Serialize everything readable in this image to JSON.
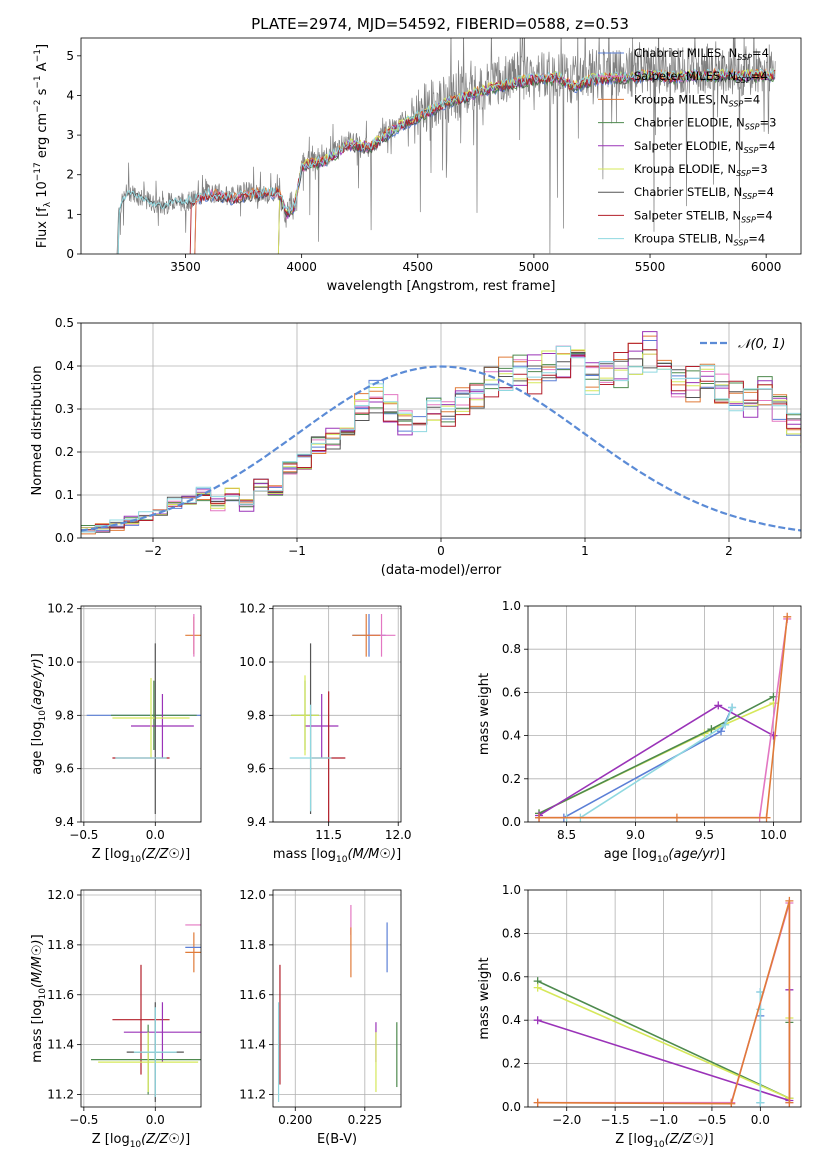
{
  "title": "PLATE=2974, MJD=54592, FIBERID=0588, z=0.53",
  "colors": {
    "Chabrier MILES": "#5b7fd6",
    "Salpeter MILES": "#e377c2",
    "Kroupa MILES": "#e07b39",
    "Chabrier ELODIE": "#4e8a4e",
    "Salpeter ELODIE": "#9a33b8",
    "Kroupa ELODIE": "#d6e85a",
    "Chabrier STELIB": "#555555",
    "Salpeter STELIB": "#b21f2a",
    "Kroupa STELIB": "#8fd8e0"
  },
  "chart_data": [
    {
      "id": "spectrum",
      "type": "line",
      "xlabel": "wavelength [Angstrom, rest frame]",
      "ylabel": "Flux [f_λ 10^-17 erg cm^-2 s^-1 A^-1]",
      "xlim": [
        3050,
        6150
      ],
      "ylim": [
        0,
        5.45
      ],
      "xticks": [
        3500,
        4000,
        4500,
        5000,
        5500,
        6000
      ],
      "yticks": [
        0,
        1,
        2,
        3,
        4,
        5
      ],
      "grid": false,
      "legend_position": "top-right",
      "data_color": "#808080",
      "data_curve": [
        [
          3205,
          0
        ],
        [
          3210,
          1.05
        ],
        [
          3250,
          1.6
        ],
        [
          3300,
          1.45
        ],
        [
          3350,
          1.3
        ],
        [
          3400,
          1.2
        ],
        [
          3450,
          1.35
        ],
        [
          3500,
          1.3
        ],
        [
          3550,
          1.4
        ],
        [
          3600,
          1.55
        ],
        [
          3650,
          1.5
        ],
        [
          3700,
          1.45
        ],
        [
          3750,
          1.6
        ],
        [
          3800,
          1.55
        ],
        [
          3850,
          1.5
        ],
        [
          3900,
          1.6
        ],
        [
          3933,
          0.9
        ],
        [
          3950,
          1.5
        ],
        [
          3968,
          1.1
        ],
        [
          4000,
          2.3
        ],
        [
          4050,
          2.55
        ],
        [
          4100,
          2.4
        ],
        [
          4150,
          2.7
        ],
        [
          4200,
          2.85
        ],
        [
          4250,
          2.8
        ],
        [
          4300,
          2.65
        ],
        [
          4350,
          3.05
        ],
        [
          4400,
          3.25
        ],
        [
          4450,
          3.4
        ],
        [
          4500,
          3.55
        ],
        [
          4550,
          3.75
        ],
        [
          4600,
          3.85
        ],
        [
          4650,
          3.95
        ],
        [
          4700,
          4.1
        ],
        [
          4750,
          4.15
        ],
        [
          4800,
          4.3
        ],
        [
          4850,
          4.35
        ],
        [
          4900,
          4.45
        ],
        [
          4950,
          4.55
        ],
        [
          5000,
          4.5
        ],
        [
          5050,
          4.55
        ],
        [
          5100,
          4.6
        ],
        [
          5150,
          4.4
        ],
        [
          5200,
          4.5
        ],
        [
          5250,
          4.55
        ],
        [
          5300,
          4.55
        ],
        [
          5350,
          4.6
        ],
        [
          5400,
          4.6
        ],
        [
          5450,
          4.55
        ],
        [
          5500,
          4.65
        ],
        [
          5550,
          4.6
        ],
        [
          5600,
          4.6
        ],
        [
          5650,
          4.65
        ],
        [
          5700,
          4.6
        ],
        [
          5750,
          4.7
        ],
        [
          5800,
          4.65
        ],
        [
          5850,
          4.65
        ],
        [
          5900,
          4.6
        ],
        [
          5950,
          4.65
        ],
        [
          6000,
          4.7
        ],
        [
          6040,
          4.7
        ]
      ],
      "model_series_curve": [
        [
          3500,
          1.3
        ],
        [
          3600,
          1.5
        ],
        [
          3700,
          1.4
        ],
        [
          3800,
          1.5
        ],
        [
          3900,
          1.55
        ],
        [
          3935,
          1.0
        ],
        [
          3970,
          1.2
        ],
        [
          4000,
          2.2
        ],
        [
          4100,
          2.35
        ],
        [
          4200,
          2.75
        ],
        [
          4300,
          2.7
        ],
        [
          4400,
          3.15
        ],
        [
          4500,
          3.45
        ],
        [
          4600,
          3.75
        ],
        [
          4700,
          3.95
        ],
        [
          4800,
          4.15
        ],
        [
          4900,
          4.3
        ],
        [
          5000,
          4.4
        ],
        [
          5100,
          4.45
        ],
        [
          5175,
          4.2
        ],
        [
          5250,
          4.4
        ],
        [
          5400,
          4.45
        ],
        [
          5500,
          4.5
        ],
        [
          5600,
          4.45
        ],
        [
          5700,
          4.5
        ],
        [
          5800,
          4.5
        ],
        [
          5900,
          4.48
        ],
        [
          6000,
          4.5
        ],
        [
          6040,
          4.52
        ]
      ],
      "model_starts": {
        "Chabrier MILES": 3540,
        "Salpeter MILES": 3540,
        "Kroupa MILES": 3540,
        "Chabrier ELODIE": 3900,
        "Salpeter ELODIE": 3900,
        "Kroupa ELODIE": 3900,
        "Chabrier STELIB": 3210,
        "Salpeter STELIB": 3520,
        "Kroupa STELIB": 3210
      },
      "legend": [
        "Chabrier MILES, N_SSP=4",
        "Salpeter MILES, N_SSP=4",
        "Kroupa MILES, N_SSP=4",
        "Chabrier ELODIE, N_SSP=3",
        "Salpeter ELODIE, N_SSP=4",
        "Kroupa ELODIE, N_SSP=3",
        "Chabrier STELIB, N_SSP=4",
        "Salpeter STELIB, N_SSP=4",
        "Kroupa STELIB, N_SSP=4"
      ]
    },
    {
      "id": "residuals",
      "type": "histogram",
      "xlabel": "(data-model)/error",
      "ylabel": "Normed distribution",
      "xlim": [
        -2.5,
        2.5
      ],
      "ylim": [
        0,
        0.5
      ],
      "xticks": [
        -2,
        -1,
        0,
        1,
        2
      ],
      "yticks": [
        0.0,
        0.1,
        0.2,
        0.3,
        0.4,
        0.5
      ],
      "grid": true,
      "legend_position": "top-right",
      "gaussian_label": "N(0,1)",
      "gaussian_color": "#5b8bd6",
      "bin_edges_start": -2.5,
      "bin_width": 0.1,
      "base_hist": [
        0.02,
        0.025,
        0.03,
        0.04,
        0.05,
        0.06,
        0.08,
        0.09,
        0.1,
        0.08,
        0.1,
        0.08,
        0.12,
        0.11,
        0.16,
        0.18,
        0.22,
        0.23,
        0.26,
        0.3,
        0.33,
        0.3,
        0.27,
        0.28,
        0.3,
        0.29,
        0.31,
        0.33,
        0.36,
        0.38,
        0.39,
        0.38,
        0.4,
        0.41,
        0.4,
        0.38,
        0.37,
        0.39,
        0.41,
        0.43,
        0.38,
        0.35,
        0.36,
        0.37,
        0.34,
        0.33,
        0.32,
        0.34,
        0.3,
        0.26,
        0.24,
        0.21,
        0.18,
        0.17,
        0.15,
        0.12,
        0.1,
        0.09,
        0.08,
        0.07,
        0.06,
        0.05,
        0.04,
        0.04,
        0.035,
        0.03,
        0.03,
        0.025,
        0.025,
        0.02
      ]
    },
    {
      "id": "age_vs_Z",
      "type": "errorbar",
      "xlabel": "Z [log10(Z/Z☉)]",
      "ylabel": "age  [log10(age/yr)]",
      "xlim": [
        -0.52,
        0.32
      ],
      "ylim": [
        9.4,
        10.21
      ],
      "xticks": [
        -0.5,
        0.0
      ],
      "yticks": [
        9.4,
        9.6,
        9.8,
        10.0,
        10.2
      ],
      "grid": true,
      "points": [
        {
          "model": "Chabrier MILES",
          "x": 0.02,
          "y": 9.8,
          "xerr": 0.5,
          "yerr": 0.0
        },
        {
          "model": "Kroupa MILES",
          "x": 0.27,
          "y": 10.1,
          "xerr": 0.06,
          "yerr": 0.07
        },
        {
          "model": "Salpeter MILES",
          "x": 0.27,
          "y": 10.1,
          "xerr": 0.0,
          "yerr": 0.08
        },
        {
          "model": "Chabrier ELODIE",
          "x": -0.01,
          "y": 9.8,
          "xerr": 0.3,
          "yerr": 0.13
        },
        {
          "model": "Salpeter ELODIE",
          "x": 0.05,
          "y": 9.76,
          "xerr": 0.22,
          "yerr": 0.12
        },
        {
          "model": "Kroupa ELODIE",
          "x": -0.03,
          "y": 9.79,
          "xerr": 0.27,
          "yerr": 0.15
        },
        {
          "model": "Chabrier STELIB",
          "x": 0.0,
          "y": 9.75,
          "xerr": 0.0,
          "yerr": 0.32
        },
        {
          "model": "Salpeter STELIB",
          "x": -0.1,
          "y": 9.64,
          "xerr": 0.2,
          "yerr": 0.0
        },
        {
          "model": "Kroupa STELIB",
          "x": -0.1,
          "y": 9.64,
          "xerr": 0.18,
          "yerr": 0.0
        }
      ]
    },
    {
      "id": "age_vs_mass",
      "type": "errorbar",
      "xlabel": "mass [log10(M/M☉)]",
      "ylabel": "",
      "xlim": [
        11.1,
        12.02
      ],
      "ylim": [
        9.4,
        10.21
      ],
      "xticks": [
        11.0,
        11.5,
        12.0
      ],
      "yticks": [
        9.4,
        9.6,
        9.8,
        10.0,
        10.2
      ],
      "grid": true,
      "points": [
        {
          "model": "Chabrier MILES",
          "x": 11.79,
          "y": 10.1,
          "xerr": 0.12,
          "yerr": 0.08
        },
        {
          "model": "Salpeter MILES",
          "x": 11.88,
          "y": 10.1,
          "xerr": 0.1,
          "yerr": 0.08
        },
        {
          "model": "Kroupa MILES",
          "x": 11.77,
          "y": 10.1,
          "xerr": 0.1,
          "yerr": 0.08
        },
        {
          "model": "Chabrier ELODIE",
          "x": 11.33,
          "y": 9.8,
          "xerr": 0.1,
          "yerr": 0.13
        },
        {
          "model": "Salpeter ELODIE",
          "x": 11.45,
          "y": 9.76,
          "xerr": 0.12,
          "yerr": 0.12
        },
        {
          "model": "Kroupa ELODIE",
          "x": 11.33,
          "y": 9.8,
          "xerr": 0.1,
          "yerr": 0.15
        },
        {
          "model": "Chabrier STELIB",
          "x": 11.37,
          "y": 9.75,
          "xerr": 0.0,
          "yerr": 0.32
        },
        {
          "model": "Salpeter STELIB",
          "x": 11.5,
          "y": 9.64,
          "xerr": 0.12,
          "yerr": 0.25
        },
        {
          "model": "Kroupa STELIB",
          "x": 11.37,
          "y": 9.64,
          "xerr": 0.15,
          "yerr": 0.2
        }
      ]
    },
    {
      "id": "massweight_vs_age",
      "type": "line",
      "xlabel": "age  [log10(age/yr)]",
      "ylabel": "mass weight",
      "xlim": [
        8.22,
        10.2
      ],
      "ylim": [
        0,
        1.0
      ],
      "xticks": [
        8.5,
        9.0,
        9.5,
        10.0
      ],
      "yticks": [
        0.0,
        0.2,
        0.4,
        0.6,
        0.8,
        1.0
      ],
      "grid": true,
      "series": [
        {
          "model": "Kroupa ELODIE",
          "x": [
            8.3,
            9.5,
            10.0
          ],
          "y": [
            0.04,
            0.41,
            0.55
          ]
        },
        {
          "model": "Chabrier ELODIE",
          "x": [
            8.3,
            9.55,
            10.0
          ],
          "y": [
            0.04,
            0.43,
            0.58
          ]
        },
        {
          "model": "Salpeter ELODIE",
          "x": [
            8.3,
            9.6,
            10.0
          ],
          "y": [
            0.03,
            0.54,
            0.4
          ]
        },
        {
          "model": "Chabrier MILES",
          "x": [
            8.48,
            9.62,
            9.7
          ],
          "y": [
            0.02,
            0.42,
            0.53
          ]
        },
        {
          "model": "Kroupa STELIB",
          "x": [
            8.5,
            8.6,
            9.65,
            9.7
          ],
          "y": [
            0.02,
            0.02,
            0.45,
            0.53
          ]
        },
        {
          "model": "Salpeter MILES",
          "x": [
            8.3,
            9.9,
            10.1
          ],
          "y": [
            0.02,
            0.02,
            0.94
          ]
        },
        {
          "model": "Kroupa MILES",
          "x": [
            8.3,
            9.3,
            9.95,
            10.1
          ],
          "y": [
            0.02,
            0.02,
            0.02,
            0.95
          ]
        }
      ]
    },
    {
      "id": "mass_vs_Z",
      "type": "errorbar",
      "xlabel": "Z [log10(Z/Z☉)]",
      "ylabel": "mass [log10(M/M☉)]",
      "xlim": [
        -0.52,
        0.32
      ],
      "ylim": [
        11.15,
        12.02
      ],
      "xticks": [
        -0.5,
        0.0
      ],
      "yticks": [
        11.2,
        11.4,
        11.6,
        11.8,
        12.0
      ],
      "grid": true,
      "points": [
        {
          "model": "Kroupa MILES",
          "x": 0.27,
          "y": 11.77,
          "xerr": 0.06,
          "yerr": 0.08
        },
        {
          "model": "Salpeter MILES",
          "x": 0.27,
          "y": 11.88,
          "xerr": 0.06,
          "yerr": 0.0
        },
        {
          "model": "Chabrier MILES",
          "x": 0.27,
          "y": 11.79,
          "xerr": 0.06,
          "yerr": 0.0
        },
        {
          "model": "Salpeter STELIB",
          "x": -0.1,
          "y": 11.5,
          "xerr": 0.2,
          "yerr": 0.22
        },
        {
          "model": "Salpeter ELODIE",
          "x": 0.05,
          "y": 11.45,
          "xerr": 0.27,
          "yerr": 0.12
        },
        {
          "model": "Chabrier STELIB",
          "x": 0.0,
          "y": 11.37,
          "xerr": 0.2,
          "yerr": 0.2
        },
        {
          "model": "Chabrier ELODIE",
          "x": -0.05,
          "y": 11.34,
          "xerr": 0.4,
          "yerr": 0.14
        },
        {
          "model": "Kroupa ELODIE",
          "x": -0.05,
          "y": 11.33,
          "xerr": 0.35,
          "yerr": 0.12
        },
        {
          "model": "Kroupa STELIB",
          "x": 0.0,
          "y": 11.37,
          "xerr": 0.15,
          "yerr": 0.18
        }
      ]
    },
    {
      "id": "mass_vs_ebv",
      "type": "errorbar",
      "xlabel": "E(B-V)",
      "ylabel": "",
      "xlim": [
        0.192,
        0.238
      ],
      "ylim": [
        11.15,
        12.02
      ],
      "xticks": [
        0.2,
        0.225
      ],
      "yticks": [
        11.2,
        11.4,
        11.6,
        11.8,
        12.0
      ],
      "grid": true,
      "points": [
        {
          "model": "Salpeter MILES",
          "x": 0.22,
          "y": 11.9,
          "xerr": 0.0,
          "yerr": 0.06
        },
        {
          "model": "Kroupa MILES",
          "x": 0.22,
          "y": 11.77,
          "xerr": 0.0,
          "yerr": 0.1
        },
        {
          "model": "Chabrier MILES",
          "x": 0.233,
          "y": 11.79,
          "xerr": 0.0,
          "yerr": 0.1
        },
        {
          "model": "Salpeter STELIB",
          "x": 0.1945,
          "y": 11.48,
          "xerr": 0.0,
          "yerr": 0.24
        },
        {
          "model": "Kroupa STELIB",
          "x": 0.194,
          "y": 11.37,
          "xerr": 0.0,
          "yerr": 0.2
        },
        {
          "model": "Salpeter ELODIE",
          "x": 0.229,
          "y": 11.41,
          "xerr": 0.0,
          "yerr": 0.08
        },
        {
          "model": "Kroupa ELODIE",
          "x": 0.229,
          "y": 11.33,
          "xerr": 0.0,
          "yerr": 0.12
        },
        {
          "model": "Chabrier ELODIE",
          "x": 0.2365,
          "y": 11.36,
          "xerr": 0.0,
          "yerr": 0.13
        }
      ]
    },
    {
      "id": "massweight_vs_Z",
      "type": "line",
      "xlabel": "Z [log10(Z/Z☉)]",
      "ylabel": "mass weight",
      "xlim": [
        -2.4,
        0.42
      ],
      "ylim": [
        0,
        1.0
      ],
      "xticks": [
        -2.0,
        -1.5,
        -1.0,
        -0.5,
        0.0
      ],
      "yticks": [
        0.0,
        0.2,
        0.4,
        0.6,
        0.8,
        1.0
      ],
      "grid": true,
      "series": [
        {
          "model": "Chabrier ELODIE",
          "x": [
            -2.3,
            0.3,
            0.3
          ],
          "y": [
            0.58,
            0.04,
            0.39
          ]
        },
        {
          "model": "Kroupa ELODIE",
          "x": [
            -2.3,
            0.3,
            0.3
          ],
          "y": [
            0.55,
            0.04,
            0.41
          ]
        },
        {
          "model": "Salpeter ELODIE",
          "x": [
            -2.3,
            0.3,
            0.3
          ],
          "y": [
            0.4,
            0.03,
            0.54
          ]
        },
        {
          "model": "Chabrier MILES",
          "x": [
            0.0,
            0.0,
            0.0
          ],
          "y": [
            0.02,
            0.42,
            0.53
          ]
        },
        {
          "model": "Kroupa STELIB",
          "x": [
            0.0,
            0.0,
            0.0
          ],
          "y": [
            0.02,
            0.45,
            0.53
          ]
        },
        {
          "model": "Salpeter MILES",
          "x": [
            -2.3,
            -0.3,
            0.3,
            0.3
          ],
          "y": [
            0.02,
            0.02,
            0.94,
            0.02
          ]
        },
        {
          "model": "Kroupa MILES",
          "x": [
            -2.3,
            -0.3,
            0.3,
            0.3
          ],
          "y": [
            0.02,
            0.015,
            0.95,
            0.02
          ]
        }
      ]
    }
  ]
}
